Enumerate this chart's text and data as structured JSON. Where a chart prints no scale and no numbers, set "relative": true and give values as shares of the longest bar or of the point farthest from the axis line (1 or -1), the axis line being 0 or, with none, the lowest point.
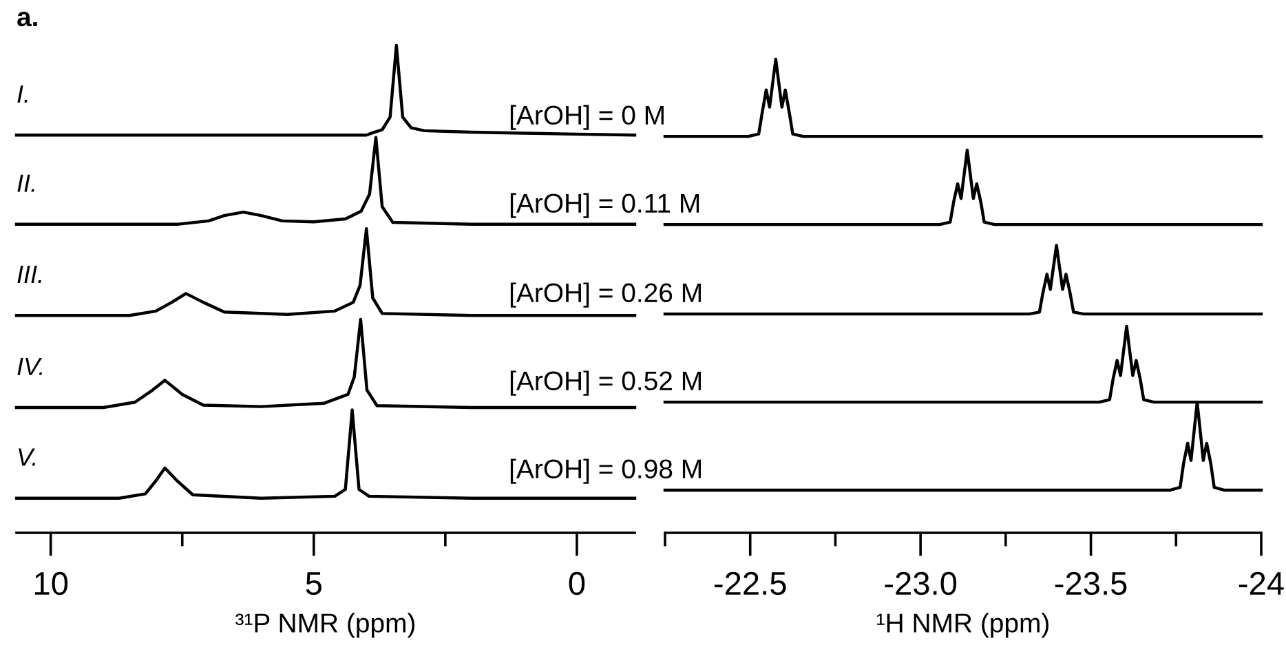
{
  "chart_data": [
    {
      "type": "line",
      "relative": true,
      "title": "a.",
      "annotations": [
        "I.",
        "II.",
        "III.",
        "IV.",
        "V."
      ],
      "xlabel": "³¹P NMR (ppm)",
      "xlim": [
        10.65,
        -1.1
      ],
      "xticks": [
        10,
        {
          "value": 7.5,
          "label": null
        },
        5,
        {
          "value": 2.5,
          "label": null
        },
        0
      ],
      "series": [
        {
          "color": "#000000",
          "x": [
            10.65,
            4.0,
            3.9,
            3.7,
            3.55,
            3.43,
            3.31,
            3.15,
            2.9,
            2.0,
            1.0,
            0.0,
            -1.1
          ],
          "values": [
            0.816,
            0.816,
            0.82,
            0.827,
            0.853,
            1,
            0.853,
            0.831,
            0.825,
            0.822,
            0.82,
            0.818,
            0.816
          ]
        },
        {
          "color": "#000000",
          "x": [
            10.65,
            7.6,
            7.0,
            6.7,
            6.34,
            6.0,
            5.6,
            5.0,
            4.4,
            4.1,
            3.94,
            3.82,
            3.7,
            3.5,
            2.0,
            -1.1
          ],
          "values": [
            0.633,
            0.633,
            0.64,
            0.651,
            0.658,
            0.651,
            0.64,
            0.638,
            0.644,
            0.66,
            0.695,
            0.811,
            0.669,
            0.637,
            0.633,
            0.633
          ]
        },
        {
          "color": "#000000",
          "x": [
            10.65,
            8.5,
            8.0,
            7.7,
            7.43,
            7.1,
            6.7,
            5.5,
            4.6,
            4.25,
            4.12,
            4.0,
            3.88,
            3.7,
            2.0,
            -1.1
          ],
          "values": [
            0.446,
            0.446,
            0.455,
            0.473,
            0.491,
            0.473,
            0.453,
            0.448,
            0.455,
            0.473,
            0.508,
            0.624,
            0.482,
            0.45,
            0.446,
            0.446
          ]
        },
        {
          "color": "#000000",
          "x": [
            10.65,
            9.0,
            8.4,
            8.1,
            7.83,
            7.5,
            7.1,
            6.0,
            4.8,
            4.35,
            4.23,
            4.11,
            3.99,
            3.8,
            2.0,
            -1.1
          ],
          "values": [
            0.257,
            0.257,
            0.268,
            0.29,
            0.313,
            0.284,
            0.262,
            0.259,
            0.266,
            0.284,
            0.32,
            0.438,
            0.293,
            0.261,
            0.257,
            0.257
          ]
        },
        {
          "color": "#000000",
          "x": [
            10.65,
            8.7,
            8.2,
            8.0,
            7.83,
            7.6,
            7.3,
            6.0,
            4.6,
            4.4,
            4.27,
            4.14,
            3.95,
            2.0,
            -1.1
          ],
          "values": [
            0.071,
            0.071,
            0.08,
            0.107,
            0.133,
            0.107,
            0.078,
            0.071,
            0.075,
            0.089,
            0.252,
            0.089,
            0.075,
            0.071,
            0.071
          ]
        }
      ]
    },
    {
      "type": "line",
      "relative": true,
      "annotations": [
        "[ArOH] = 0 M",
        "[ArOH] = 0.11 M",
        "[ArOH] = 0.26 M",
        "[ArOH] = 0.52 M",
        "[ArOH] = 0.98 M"
      ],
      "xlabel": "¹H NMR (ppm)",
      "xlim": [
        -22.25,
        -24.0
      ],
      "xticks": [
        {
          "value": -22.25,
          "label": null
        },
        {
          "value": -22.5,
          "label": "-22.5"
        },
        {
          "value": -22.75,
          "label": null
        },
        {
          "value": -23.0,
          "label": "-23.0"
        },
        {
          "value": -23.25,
          "label": null
        },
        {
          "value": -23.5,
          "label": "-23.5"
        },
        {
          "value": -23.75,
          "label": null
        },
        {
          "value": -24.0,
          "label": "-24"
        }
      ],
      "series": [
        {
          "color": "#000000",
          "x": [
            -22.25,
            -22.495,
            -22.525,
            -22.535,
            -22.547,
            -22.557,
            -22.575,
            -22.593,
            -22.603,
            -22.615,
            -22.625,
            -22.655,
            -24.0
          ],
          "values": [
            0.837,
            0.837,
            0.842,
            0.886,
            0.935,
            0.899,
            1,
            0.899,
            0.935,
            0.886,
            0.842,
            0.837,
            0.837
          ]
        },
        {
          "color": "#000000",
          "x": [
            -22.25,
            -23.057,
            -23.087,
            -23.097,
            -23.109,
            -23.119,
            -23.137,
            -23.155,
            -23.165,
            -23.177,
            -23.187,
            -23.217,
            -24.0
          ],
          "values": [
            0.651,
            0.651,
            0.656,
            0.698,
            0.737,
            0.706,
            0.808,
            0.706,
            0.737,
            0.698,
            0.656,
            0.651,
            0.651
          ]
        },
        {
          "color": "#000000",
          "x": [
            -22.25,
            -23.319,
            -23.349,
            -23.359,
            -23.371,
            -23.381,
            -23.399,
            -23.417,
            -23.427,
            -23.439,
            -23.449,
            -23.479,
            -24.0
          ],
          "values": [
            0.462,
            0.462,
            0.466,
            0.506,
            0.546,
            0.514,
            0.607,
            0.514,
            0.546,
            0.506,
            0.466,
            0.462,
            0.462
          ]
        },
        {
          "color": "#000000",
          "x": [
            -22.25,
            -23.525,
            -23.555,
            -23.565,
            -23.577,
            -23.587,
            -23.605,
            -23.623,
            -23.633,
            -23.645,
            -23.655,
            -23.685,
            -24.0
          ],
          "values": [
            0.276,
            0.276,
            0.281,
            0.324,
            0.364,
            0.332,
            0.436,
            0.332,
            0.364,
            0.324,
            0.281,
            0.276,
            0.276
          ]
        },
        {
          "color": "#000000",
          "x": [
            -22.25,
            -23.732,
            -23.762,
            -23.772,
            -23.784,
            -23.794,
            -23.812,
            -23.83,
            -23.84,
            -23.852,
            -23.862,
            -23.892,
            -24.0
          ],
          "values": [
            0.09,
            0.09,
            0.096,
            0.146,
            0.189,
            0.153,
            0.276,
            0.153,
            0.189,
            0.146,
            0.096,
            0.09,
            0.09
          ]
        }
      ]
    }
  ]
}
